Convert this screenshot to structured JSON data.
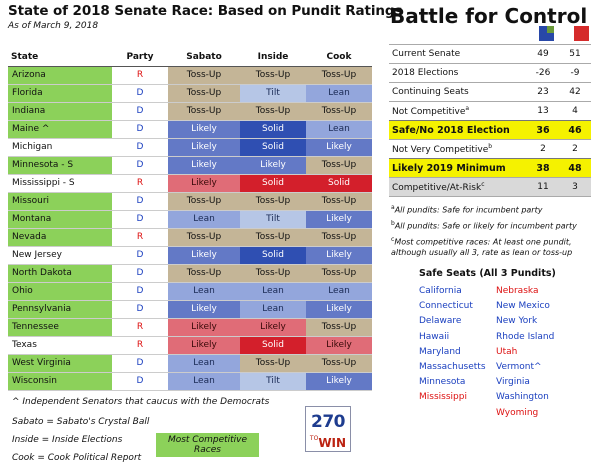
{
  "header": {
    "title": "State of 2018 Senate Race: Based on Pundit Ratings",
    "as_of": "As of March 9, 2018"
  },
  "table": {
    "columns": [
      "State",
      "Party",
      "Sabato",
      "Inside",
      "Cook"
    ],
    "rows": [
      {
        "state": "Arizona",
        "party": "R",
        "sabato": "Toss-Up",
        "inside": "Toss-Up",
        "cook": "Toss-Up",
        "competitive": true
      },
      {
        "state": "Florida",
        "party": "D",
        "sabato": "Toss-Up",
        "inside": "Tilt",
        "cook": "Lean",
        "competitive": true
      },
      {
        "state": "Indiana",
        "party": "D",
        "sabato": "Toss-Up",
        "inside": "Toss-Up",
        "cook": "Toss-Up",
        "competitive": true
      },
      {
        "state": "Maine ^",
        "party": "D",
        "sabato": "Likely",
        "inside": "Solid",
        "cook": "Lean",
        "competitive": true
      },
      {
        "state": "Michigan",
        "party": "D",
        "sabato": "Likely",
        "inside": "Solid",
        "cook": "Likely",
        "competitive": false
      },
      {
        "state": "Minnesota - S",
        "party": "D",
        "sabato": "Likely",
        "inside": "Likely",
        "cook": "Toss-Up",
        "competitive": true
      },
      {
        "state": "Mississippi - S",
        "party": "R",
        "sabato": "Likely",
        "inside": "Solid",
        "cook": "Solid",
        "competitive": false
      },
      {
        "state": "Missouri",
        "party": "D",
        "sabato": "Toss-Up",
        "inside": "Toss-Up",
        "cook": "Toss-Up",
        "competitive": true
      },
      {
        "state": "Montana",
        "party": "D",
        "sabato": "Lean",
        "inside": "Tilt",
        "cook": "Likely",
        "competitive": true
      },
      {
        "state": "Nevada",
        "party": "R",
        "sabato": "Toss-Up",
        "inside": "Toss-Up",
        "cook": "Toss-Up",
        "competitive": true
      },
      {
        "state": "New Jersey",
        "party": "D",
        "sabato": "Likely",
        "inside": "Solid",
        "cook": "Likely",
        "competitive": false
      },
      {
        "state": "North Dakota",
        "party": "D",
        "sabato": "Toss-Up",
        "inside": "Toss-Up",
        "cook": "Toss-Up",
        "competitive": true
      },
      {
        "state": "Ohio",
        "party": "D",
        "sabato": "Lean",
        "inside": "Lean",
        "cook": "Lean",
        "competitive": true
      },
      {
        "state": "Pennsylvania",
        "party": "D",
        "sabato": "Likely",
        "inside": "Lean",
        "cook": "Likely",
        "competitive": true
      },
      {
        "state": "Tennessee",
        "party": "R",
        "sabato": "Likely",
        "inside": "Likely",
        "cook": "Toss-Up",
        "competitive": true
      },
      {
        "state": "Texas",
        "party": "R",
        "sabato": "Likely",
        "inside": "Solid",
        "cook": "Likely",
        "competitive": false
      },
      {
        "state": "West Virginia",
        "party": "D",
        "sabato": "Lean",
        "inside": "Toss-Up",
        "cook": "Toss-Up",
        "competitive": true
      },
      {
        "state": "Wisconsin",
        "party": "D",
        "sabato": "Lean",
        "inside": "Tilt",
        "cook": "Likely",
        "competitive": true
      }
    ]
  },
  "notes": {
    "caret": "^ Independent Senators that caucus with the Democrats",
    "sabato": "Sabato = Sabato's Crystal Ball",
    "inside": "Inside = Inside Elections",
    "cook": "Cook = Cook Political Report",
    "most_competitive": "Most Competitive Races"
  },
  "logo": {
    "num": "270",
    "to": "TO",
    "win": "WIN"
  },
  "battle": {
    "title": "Battle for Control",
    "colors": {
      "dem": "#2848a8",
      "rep": "#d52b2b"
    },
    "rows": [
      {
        "label": "Current Senate",
        "sup": "",
        "d": "49",
        "r": "51",
        "style": "normal"
      },
      {
        "label": "2018 Elections",
        "sup": "",
        "d": "-26",
        "r": "-9",
        "style": "normal"
      },
      {
        "label": "Continuing Seats",
        "sup": "",
        "d": "23",
        "r": "42",
        "style": "normal"
      },
      {
        "label": "Not Competitive",
        "sup": "a",
        "d": "13",
        "r": "4",
        "style": "normal"
      },
      {
        "label": "Safe/No 2018 Election",
        "sup": "",
        "d": "36",
        "r": "46",
        "style": "hl"
      },
      {
        "label": "Not Very Competitive",
        "sup": "b",
        "d": "2",
        "r": "2",
        "style": "normal"
      },
      {
        "label": "Likely 2019 Minimum",
        "sup": "",
        "d": "38",
        "r": "48",
        "style": "hl"
      },
      {
        "label": "Competitive/At-Risk",
        "sup": "c",
        "d": "11",
        "r": "3",
        "style": "gray"
      }
    ]
  },
  "footnotes": {
    "a_sup": "a",
    "a": "All pundits: Safe for incumbent party",
    "b_sup": "b",
    "b": "All pundits: Safe or likely for incumbent party",
    "c_sup": "c",
    "c1": "Most competitive races: At least one pundit,",
    "c2": "although usually all 3, rate as lean or toss-up"
  },
  "safe_seats": {
    "title": "Safe Seats (All 3 Pundits)",
    "col1": [
      {
        "name": "California",
        "party": "D"
      },
      {
        "name": "Connecticut",
        "party": "D"
      },
      {
        "name": "Delaware",
        "party": "D"
      },
      {
        "name": "Hawaii",
        "party": "D"
      },
      {
        "name": "Maryland",
        "party": "D"
      },
      {
        "name": "Massachusetts",
        "party": "D"
      },
      {
        "name": "Minnesota",
        "party": "D"
      },
      {
        "name": "Mississippi",
        "party": "R"
      }
    ],
    "col2": [
      {
        "name": "Nebraska",
        "party": "R"
      },
      {
        "name": "New Mexico",
        "party": "D"
      },
      {
        "name": "New York",
        "party": "D"
      },
      {
        "name": "Rhode Island",
        "party": "D"
      },
      {
        "name": "Utah",
        "party": "R"
      },
      {
        "name": "Vermont^",
        "party": "D"
      },
      {
        "name": "Virginia",
        "party": "D"
      },
      {
        "name": "Washington",
        "party": "D"
      },
      {
        "name": "Wyoming",
        "party": "R"
      }
    ]
  }
}
